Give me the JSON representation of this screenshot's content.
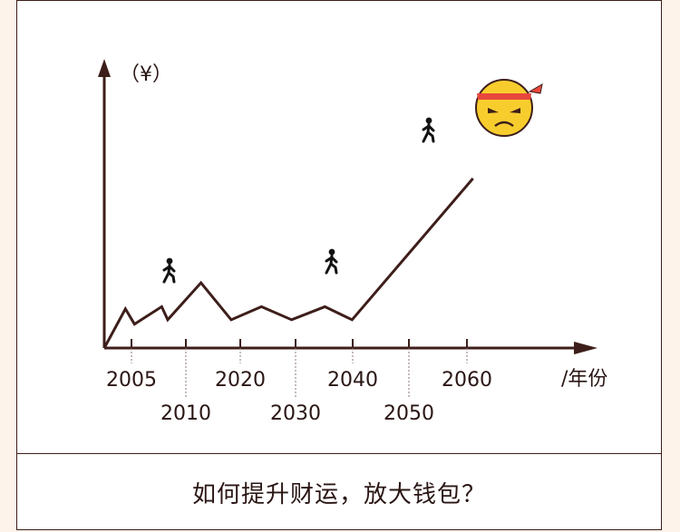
{
  "colors": {
    "axis": "#3d1e1a",
    "line": "#3d1e1a",
    "background": "#fdf3ea",
    "card": "#ffffff",
    "emoji_face": "#f7cd2e",
    "headband": "#e8473c"
  },
  "caption": "如何提升财运，放大钱包？",
  "chart_data": {
    "type": "line",
    "ylabel": "（¥）",
    "xlabel": "/年份",
    "x_ticks": [
      2005,
      2010,
      2020,
      2030,
      2040,
      2050,
      2060
    ],
    "x_tick_labels_upper": [
      "2005",
      "2020",
      "2040",
      "2060"
    ],
    "x_tick_labels_lower": [
      "2010",
      "2030",
      "2050"
    ],
    "xlim": [
      2000,
      2070
    ],
    "ylim": [
      0,
      100
    ],
    "series": [
      {
        "x": [
          2000,
          2003.5,
          2005,
          2009.5,
          2010.5,
          2016,
          2021,
          2026,
          2031,
          2036.5,
          2041,
          2061
        ],
        "y": [
          0,
          18,
          11,
          19,
          13,
          30,
          13,
          19,
          13,
          19,
          13,
          78
        ]
      }
    ],
    "markers": [
      {
        "icon": "walking-person-icon",
        "x": 2010
      },
      {
        "icon": "walking-person-icon",
        "x": 2040
      },
      {
        "icon": "walking-person-icon",
        "x": 2058
      },
      {
        "icon": "angry-face-icon",
        "x": 2067
      }
    ],
    "grid": false,
    "legend": "none"
  }
}
